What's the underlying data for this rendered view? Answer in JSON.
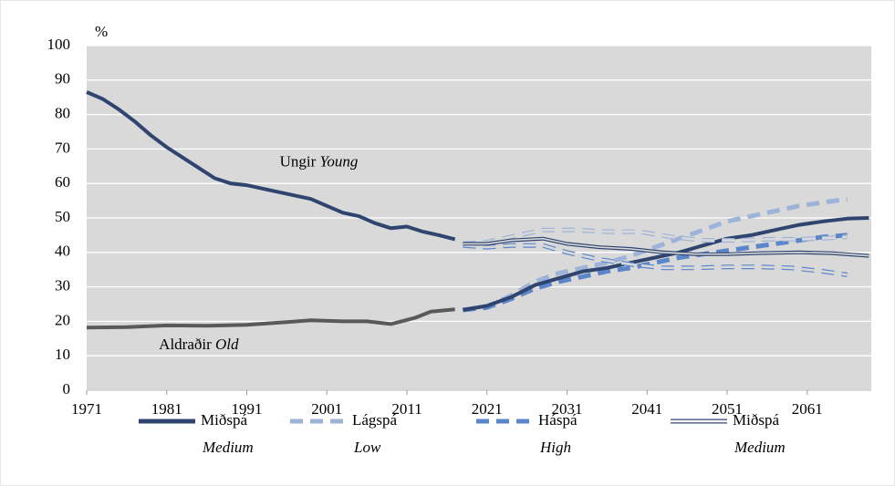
{
  "chart_data": {
    "type": "line",
    "unit_label": "%",
    "xlim": [
      1971,
      2069
    ],
    "xticks": [
      1971,
      1981,
      1991,
      2001,
      2011,
      2021,
      2031,
      2041,
      2051,
      2061
    ],
    "ylim": [
      0,
      100
    ],
    "yticks": [
      0,
      10,
      20,
      30,
      40,
      50,
      60,
      70,
      80,
      90,
      100
    ],
    "grid": true,
    "background": "#d9d9d9",
    "annotations": [
      {
        "text": "Ungir",
        "italic_text": "Young",
        "x": 2000,
        "y": 66
      },
      {
        "text": "Aldraðir",
        "italic_text": "Old",
        "x": 1985,
        "y": 13
      }
    ],
    "series": [
      {
        "color": "#2f4570",
        "width": 4,
        "dash": "none",
        "hollow": false,
        "x": [
          1971,
          1973,
          1975,
          1977,
          1979,
          1981,
          1983,
          1985,
          1987,
          1989,
          1991,
          1993,
          1995,
          1997,
          1999,
          2001,
          2003,
          2005,
          2007,
          2009,
          2011,
          2013,
          2015,
          2017
        ],
        "values": [
          86.5,
          84.5,
          81.5,
          78,
          74,
          70.5,
          67.5,
          64.5,
          61.5,
          60,
          59.5,
          58.5,
          57.5,
          56.5,
          55.5,
          53.5,
          51.5,
          50.5,
          48.5,
          47,
          47.5,
          46,
          45,
          43.8
        ]
      },
      {
        "color": "#595959",
        "width": 4,
        "dash": "none",
        "hollow": false,
        "x": [
          1971,
          1976,
          1981,
          1986,
          1991,
          1996,
          1999,
          2003,
          2006,
          2009,
          2012,
          2014,
          2017
        ],
        "values": [
          18.2,
          18.3,
          18.8,
          18.7,
          19,
          19.8,
          20.3,
          20,
          20,
          19.2,
          21,
          22.8,
          23.5
        ]
      },
      {
        "color": "#9db4d8",
        "width": 5,
        "dash": "14 8",
        "hollow": false,
        "x": [
          2018,
          2021,
          2024,
          2027,
          2030,
          2033,
          2036,
          2039,
          2042,
          2045,
          2048,
          2051,
          2054,
          2057,
          2060,
          2063,
          2066
        ],
        "values": [
          23.3,
          24.3,
          27.5,
          31.5,
          34,
          35.5,
          37,
          39,
          41.5,
          44,
          46.5,
          49,
          50.5,
          52,
          53.5,
          54.5,
          55.5
        ]
      },
      {
        "color": "#5b86c9",
        "width": 5,
        "dash": "14 8",
        "hollow": false,
        "x": [
          2018,
          2021,
          2024,
          2027,
          2030,
          2033,
          2036,
          2039,
          2042,
          2045,
          2048,
          2051,
          2054,
          2057,
          2060,
          2063,
          2066
        ],
        "values": [
          23.3,
          24,
          26.5,
          29.5,
          31.5,
          33,
          34.5,
          35.5,
          37,
          38.5,
          39.5,
          40.5,
          41.5,
          42.5,
          43.5,
          44.5,
          45
        ]
      },
      {
        "color": "#2f4570",
        "width": 4,
        "dash": "none",
        "hollow": false,
        "x": [
          2018,
          2021,
          2024,
          2027,
          2030,
          2033,
          2036,
          2039,
          2042,
          2045,
          2048,
          2051,
          2054,
          2057,
          2060,
          2063,
          2066,
          2068.7
        ],
        "values": [
          23.3,
          24.5,
          27,
          30.5,
          32.5,
          34.5,
          35.5,
          37,
          38.5,
          40,
          42,
          44,
          45,
          46.5,
          48,
          49,
          49.8,
          50
        ]
      },
      {
        "color": "#9db4d8",
        "width": 5,
        "dash": "14 8",
        "hollow": true,
        "x": [
          2018,
          2021,
          2024,
          2028,
          2032,
          2036,
          2040,
          2044,
          2048,
          2052,
          2056,
          2060,
          2064,
          2066
        ],
        "values": [
          42.5,
          43,
          44.5,
          46.5,
          46.5,
          46,
          46,
          44.5,
          43.5,
          43.5,
          43.8,
          43.8,
          44.2,
          44.5
        ]
      },
      {
        "color": "#5b86c9",
        "width": 5,
        "dash": "14 8",
        "hollow": true,
        "x": [
          2018,
          2021,
          2024,
          2028,
          2031,
          2035,
          2039,
          2043,
          2047,
          2051,
          2055,
          2059,
          2063,
          2066
        ],
        "values": [
          42,
          41.5,
          42,
          42,
          40,
          38,
          36.5,
          35.5,
          35.5,
          35.8,
          35.8,
          35.5,
          34.5,
          33.5
        ]
      },
      {
        "color": "#2f4570",
        "width": 4,
        "dash": "none",
        "hollow": true,
        "x": [
          2018,
          2021,
          2024,
          2028,
          2031,
          2035,
          2039,
          2043,
          2047,
          2051,
          2055,
          2060,
          2064,
          2068.7
        ],
        "values": [
          42.5,
          42.5,
          43.5,
          44,
          42.5,
          41.5,
          41,
          40,
          39.5,
          39.5,
          39.8,
          40,
          39.8,
          39
        ]
      }
    ],
    "legend": [
      {
        "label": "Miðspá",
        "sublabel": "Medium",
        "color": "#2f4570",
        "dash": "none",
        "hollow": false
      },
      {
        "label": "Lágspá",
        "sublabel": "Low",
        "color": "#9db4d8",
        "dash": "14 8",
        "hollow": false
      },
      {
        "label": "Háspá",
        "sublabel": "High",
        "color": "#5b86c9",
        "dash": "14 8",
        "hollow": false
      },
      {
        "label": "Miðspá",
        "sublabel": "Medium",
        "color": "#2f4570",
        "dash": "none",
        "hollow": true
      }
    ]
  }
}
